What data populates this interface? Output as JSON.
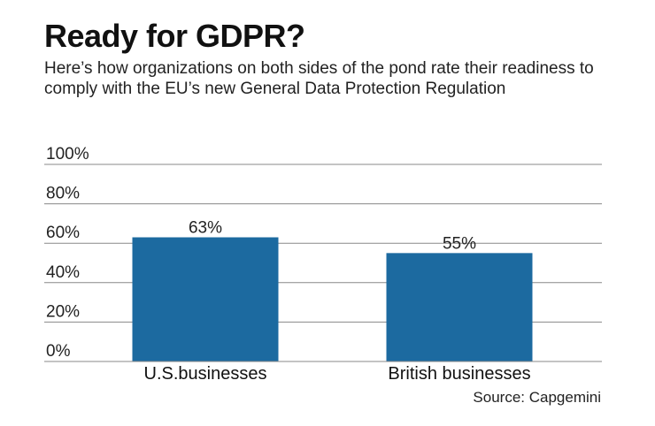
{
  "header": {
    "title": "Ready for GDPR?",
    "subtitle": "Here’s how organizations on both sides of the pond rate their readiness to comply with the EU’s new General Data Protection Regulation"
  },
  "footer": {
    "source": "Source: Capgemini"
  },
  "colors": {
    "bar": "#1c6aa0",
    "grid": "#888888",
    "text": "#111111"
  },
  "chart_data": {
    "type": "bar",
    "title": "Ready for GDPR?",
    "xlabel": "",
    "ylabel": "",
    "categories": [
      "U.S.businesses",
      "British businesses"
    ],
    "values": [
      63,
      55
    ],
    "data_labels": [
      "63%",
      "55%"
    ],
    "ylim": [
      0,
      100
    ],
    "yticks": [
      0,
      20,
      40,
      60,
      80,
      100
    ],
    "ytick_labels": [
      "0%",
      "20%",
      "40%",
      "60%",
      "80%",
      "100%"
    ],
    "grid": true,
    "legend": "none"
  }
}
